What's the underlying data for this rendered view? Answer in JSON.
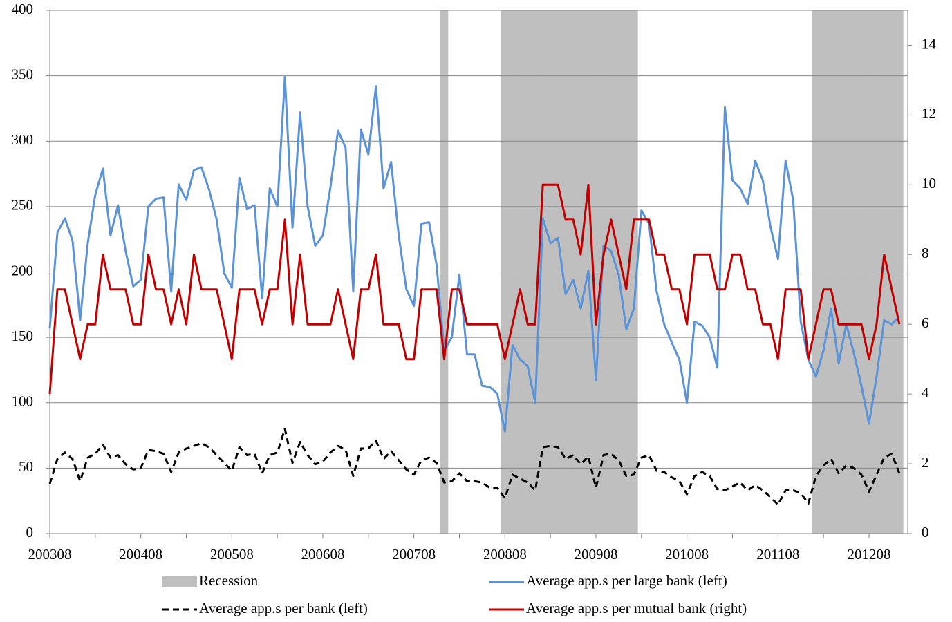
{
  "chart_data": {
    "type": "line",
    "categories": [
      "200308",
      null,
      null,
      null,
      null,
      null,
      null,
      null,
      null,
      null,
      null,
      null,
      "200408",
      null,
      null,
      null,
      null,
      null,
      null,
      null,
      null,
      null,
      null,
      null,
      "200508",
      null,
      null,
      null,
      null,
      null,
      null,
      null,
      null,
      null,
      null,
      null,
      "200608",
      null,
      null,
      null,
      null,
      null,
      null,
      null,
      null,
      null,
      null,
      null,
      "200708",
      null,
      null,
      null,
      null,
      null,
      null,
      null,
      null,
      null,
      null,
      null,
      "200808",
      null,
      null,
      null,
      null,
      null,
      null,
      null,
      null,
      null,
      null,
      null,
      "200908",
      null,
      null,
      null,
      null,
      null,
      null,
      null,
      null,
      null,
      null,
      null,
      "201008",
      null,
      null,
      null,
      null,
      null,
      null,
      null,
      null,
      null,
      null,
      null,
      "201108",
      null,
      null,
      null,
      null,
      null,
      null,
      null,
      null,
      null,
      null,
      null,
      "201208",
      null,
      null,
      null,
      null
    ],
    "ylim": [
      0,
      400
    ],
    "yticks": [
      0,
      50,
      100,
      150,
      200,
      250,
      300,
      350,
      400
    ],
    "y2lim": [
      0,
      15
    ],
    "y2ticks": [
      0,
      2,
      4,
      6,
      8,
      10,
      12,
      14
    ],
    "grid": true,
    "series": [
      {
        "name": "Recession",
        "type": "bar",
        "color": "#bfbfbf",
        "values": [
          null,
          null,
          null,
          null,
          null,
          null,
          null,
          null,
          null,
          null,
          null,
          null,
          null,
          null,
          null,
          null,
          null,
          null,
          null,
          null,
          null,
          null,
          null,
          null,
          null,
          null,
          null,
          null,
          null,
          null,
          null,
          null,
          null,
          null,
          null,
          null,
          null,
          null,
          null,
          null,
          null,
          null,
          null,
          null,
          null,
          null,
          null,
          null,
          null,
          null,
          null,
          null,
          400,
          null,
          null,
          null,
          null,
          null,
          null,
          null,
          400,
          400,
          400,
          400,
          400,
          400,
          400,
          400,
          400,
          400,
          400,
          400,
          400,
          400,
          400,
          400,
          400,
          400,
          null,
          null,
          null,
          null,
          null,
          null,
          null,
          null,
          null,
          null,
          null,
          null,
          null,
          null,
          null,
          null,
          null,
          null,
          null,
          null,
          null,
          null,
          null,
          400,
          400,
          400,
          400,
          400,
          400,
          400,
          400,
          400,
          400,
          400,
          400
        ]
      },
      {
        "name": "Average app.s per large bank (left)",
        "type": "line",
        "color": "#5b93d6",
        "values": [
          157,
          230,
          241,
          224,
          163,
          222,
          259,
          279,
          228,
          251,
          216,
          189,
          194,
          250,
          256,
          257,
          185,
          267,
          255,
          278,
          280,
          263,
          240,
          199,
          188,
          272,
          248,
          251,
          180,
          264,
          250,
          349,
          234,
          322,
          250,
          220,
          228,
          265,
          308,
          295,
          185,
          309,
          290,
          342,
          264,
          284,
          228,
          187,
          174,
          237,
          238,
          205,
          140,
          150,
          198,
          137,
          137,
          113,
          112,
          107,
          78,
          144,
          133,
          128,
          100,
          241,
          222,
          226,
          183,
          194,
          172,
          201,
          117,
          220,
          216,
          198,
          156,
          172,
          247,
          237,
          185,
          160,
          146,
          133,
          100,
          162,
          159,
          150,
          127,
          326,
          270,
          264,
          252,
          285,
          270,
          235,
          210,
          285,
          255,
          162,
          133,
          120,
          140,
          172,
          130,
          160,
          138,
          113,
          84,
          120,
          163,
          160,
          166
        ]
      },
      {
        "name": "Average app.s per bank (left)",
        "type": "line",
        "color": "#000000",
        "line_style": "dashed",
        "values": [
          38,
          57,
          62,
          57,
          40,
          58,
          61,
          68,
          58,
          60,
          53,
          49,
          50,
          64,
          63,
          61,
          47,
          62,
          65,
          67,
          69,
          66,
          60,
          54,
          48,
          66,
          60,
          61,
          46,
          60,
          62,
          80,
          54,
          70,
          60,
          53,
          55,
          62,
          67,
          64,
          44,
          65,
          65,
          71,
          57,
          63,
          56,
          49,
          45,
          56,
          58,
          54,
          39,
          40,
          46,
          40,
          40,
          39,
          35,
          35,
          27,
          45,
          42,
          39,
          33,
          66,
          67,
          66,
          57,
          60,
          53,
          59,
          35,
          60,
          61,
          56,
          44,
          45,
          58,
          60,
          48,
          47,
          43,
          40,
          30,
          44,
          47,
          44,
          34,
          33,
          36,
          39,
          33,
          37,
          33,
          28,
          22,
          33,
          33,
          31,
          23,
          44,
          52,
          57,
          46,
          52,
          50,
          45,
          32,
          45,
          58,
          61,
          46
        ]
      },
      {
        "name": "Average app.s per mutual bank (right)",
        "type": "line",
        "axis": "y2",
        "color": "#c00000",
        "values": [
          4,
          7,
          7,
          6,
          5,
          6,
          6,
          8,
          7,
          7,
          7,
          6,
          6,
          8,
          7,
          7,
          6,
          7,
          6,
          8,
          7,
          7,
          7,
          6,
          5,
          7,
          7,
          7,
          6,
          7,
          7,
          9,
          6,
          8,
          6,
          6,
          6,
          6,
          7,
          6,
          5,
          7,
          7,
          8,
          6,
          6,
          6,
          5,
          5,
          7,
          7,
          7,
          5,
          7,
          7,
          6,
          6,
          6,
          6,
          6,
          5,
          6,
          7,
          6,
          6,
          10,
          10,
          10,
          9,
          9,
          8,
          10,
          6,
          8,
          9,
          8,
          7,
          9,
          9,
          9,
          8,
          8,
          7,
          7,
          6,
          8,
          8,
          8,
          7,
          7,
          8,
          8,
          7,
          7,
          6,
          6,
          5,
          7,
          7,
          7,
          5,
          6,
          7,
          7,
          6,
          6,
          6,
          6,
          5,
          6,
          8,
          7,
          6
        ]
      }
    ]
  }
}
